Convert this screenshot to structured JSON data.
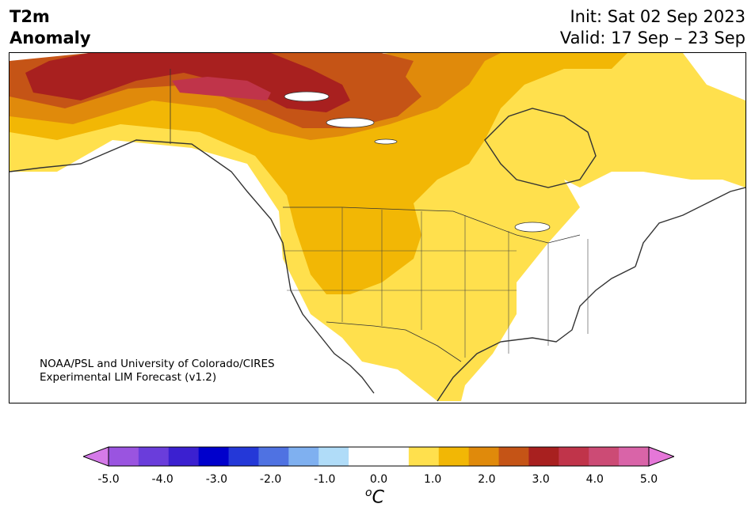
{
  "title": {
    "left_line1": "T2m",
    "left_line2": "Anomaly",
    "init": "Init: Sat 02 Sep 2023",
    "valid": "Valid: 17 Sep – 23 Sep"
  },
  "credit": {
    "line1": "NOAA/PSL and University of Colorado/CIRES",
    "line2": "Experimental LIM Forecast (v1.2)"
  },
  "colorbar": {
    "colors": [
      "#d57ae8",
      "#9a54e0",
      "#6a3ddb",
      "#3b20d0",
      "#0000cc",
      "#2438d8",
      "#4f72e2",
      "#7fb0f0",
      "#b0dcf8",
      "#ffffff",
      "#ffffff",
      "#ffe04d",
      "#f2b705",
      "#e08a0b",
      "#c55416",
      "#a8201f",
      "#c0344a",
      "#cc4b75",
      "#d964a8",
      "#e577d8"
    ],
    "labels": [
      "-5.0",
      "-4.0",
      "-3.0",
      "-2.0",
      "-1.0",
      "0.0",
      "1.0",
      "2.0",
      "3.0",
      "4.0",
      "5.0"
    ],
    "unit_base": "C",
    "unit_sup": "o"
  },
  "map": {
    "region": "North America",
    "anomaly_colors": {
      "c05": "#ffe04d",
      "c10": "#f2b705",
      "c15": "#e08a0b",
      "c20": "#c55416",
      "c25": "#a8201f",
      "c30": "#c0344a"
    }
  }
}
